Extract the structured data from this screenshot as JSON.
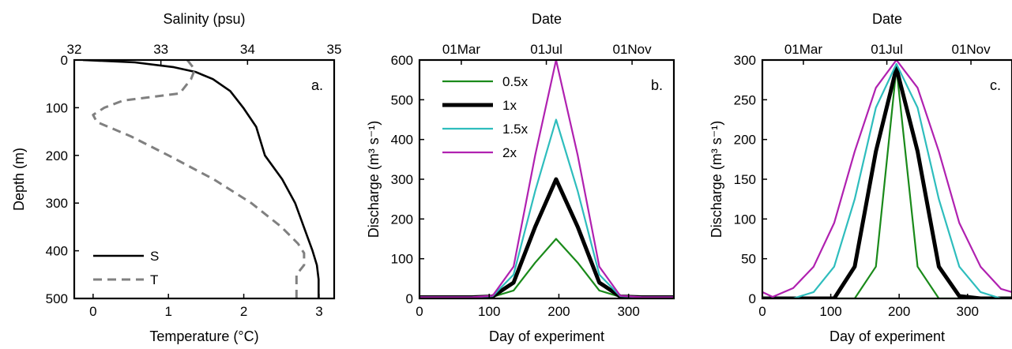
{
  "chart_data": [
    {
      "type": "line",
      "panel_label": "a.",
      "xlabel": "Temperature (°C)",
      "top_xlabel": "Salinity (psu)",
      "ylabel": "Depth (m)",
      "xlim": [
        -0.25,
        3.2
      ],
      "top_xlim": [
        32,
        35
      ],
      "ylim": [
        500,
        0
      ],
      "x_ticks": [
        "0",
        "1",
        "2",
        "3"
      ],
      "top_x_ticks": [
        "32",
        "33",
        "34",
        "35"
      ],
      "y_ticks": [
        "0",
        "100",
        "200",
        "300",
        "400",
        "500"
      ],
      "legend": {
        "position": "bottom-left",
        "entries": [
          "S",
          "T"
        ]
      },
      "series": [
        {
          "name": "S",
          "axis": "top",
          "style": "solid",
          "color": "#000000",
          "points": [
            [
              32.1,
              0
            ],
            [
              32.7,
              5
            ],
            [
              33.15,
              15
            ],
            [
              33.4,
              25
            ],
            [
              33.6,
              40
            ],
            [
              33.8,
              65
            ],
            [
              33.95,
              100
            ],
            [
              34.1,
              140
            ],
            [
              34.2,
              200
            ],
            [
              34.4,
              250
            ],
            [
              34.55,
              300
            ],
            [
              34.65,
              350
            ],
            [
              34.75,
              400
            ],
            [
              34.8,
              430
            ],
            [
              34.82,
              460
            ],
            [
              34.82,
              500
            ]
          ]
        },
        {
          "name": "T",
          "axis": "bottom",
          "style": "dashed",
          "color": "#808080",
          "points": [
            [
              1.25,
              0
            ],
            [
              1.35,
              20
            ],
            [
              1.3,
              40
            ],
            [
              1.15,
              70
            ],
            [
              0.75,
              78
            ],
            [
              0.4,
              85
            ],
            [
              0.15,
              100
            ],
            [
              0.0,
              115
            ],
            [
              0.05,
              130
            ],
            [
              0.5,
              160
            ],
            [
              1.0,
              200
            ],
            [
              1.6,
              250
            ],
            [
              2.1,
              300
            ],
            [
              2.5,
              350
            ],
            [
              2.72,
              385
            ],
            [
              2.8,
              405
            ],
            [
              2.8,
              430
            ],
            [
              2.7,
              450
            ],
            [
              2.7,
              500
            ]
          ]
        }
      ]
    },
    {
      "type": "line",
      "panel_label": "b.",
      "xlabel": "Day of experiment",
      "top_xlabel": "Date",
      "ylabel": "Discharge (m³ s⁻¹)",
      "xlim": [
        0,
        365
      ],
      "ylim": [
        0,
        600
      ],
      "x_ticks": [
        "0",
        "100",
        "200",
        "300"
      ],
      "top_x_ticks": [
        {
          "label": "01Mar",
          "x": 60
        },
        {
          "label": "01Jul",
          "x": 182
        },
        {
          "label": "01Nov",
          "x": 305
        }
      ],
      "y_ticks": [
        "0",
        "100",
        "200",
        "300",
        "400",
        "500",
        "600"
      ],
      "legend": {
        "position": "top-left",
        "entries": [
          "0.5x",
          "1x",
          "1.5x",
          "2x"
        ]
      },
      "x": [
        0,
        15,
        45,
        75,
        105,
        135,
        166,
        196,
        227,
        258,
        288,
        319,
        349,
        365
      ],
      "series": [
        {
          "name": "0.5x",
          "color": "#1a8a1a",
          "width": 2.2,
          "values": [
            3,
            3,
            3,
            3,
            4,
            20,
            90,
            150,
            90,
            20,
            4,
            3,
            3,
            3
          ]
        },
        {
          "name": "1x",
          "color": "#000000",
          "width": 5,
          "values": [
            3,
            3,
            3,
            3,
            5,
            40,
            180,
            300,
            180,
            40,
            5,
            3,
            3,
            3
          ]
        },
        {
          "name": "1.5x",
          "color": "#2ebdbd",
          "width": 2.2,
          "values": [
            3,
            3,
            3,
            3,
            6,
            60,
            270,
            450,
            270,
            60,
            6,
            3,
            3,
            3
          ]
        },
        {
          "name": "2x",
          "color": "#b021b0",
          "width": 2.2,
          "values": [
            3,
            3,
            3,
            3,
            7,
            80,
            360,
            600,
            360,
            80,
            7,
            3,
            3,
            3
          ]
        }
      ]
    },
    {
      "type": "line",
      "panel_label": "c.",
      "xlabel": "Day of experiment",
      "top_xlabel": "Date",
      "ylabel": "Discharge (m³ s⁻¹)",
      "xlim": [
        0,
        365
      ],
      "ylim": [
        0,
        300
      ],
      "x_ticks": [
        "0",
        "100",
        "200",
        "300"
      ],
      "top_x_ticks": [
        {
          "label": "01Mar",
          "x": 60
        },
        {
          "label": "01Jul",
          "x": 182
        },
        {
          "label": "01Nov",
          "x": 305
        }
      ],
      "y_ticks": [
        "0",
        "50",
        "100",
        "150",
        "200",
        "250",
        "300"
      ],
      "x": [
        0,
        15,
        45,
        75,
        105,
        135,
        166,
        196,
        227,
        258,
        288,
        319,
        349,
        365
      ],
      "series": [
        {
          "name": "0.5x",
          "color": "#1a8a1a",
          "width": 2.2,
          "values": [
            0,
            0,
            0,
            0,
            0,
            0,
            40,
            290,
            40,
            0,
            0,
            0,
            0,
            0
          ]
        },
        {
          "name": "1x",
          "color": "#000000",
          "width": 5,
          "values": [
            0,
            0,
            0,
            0,
            0,
            40,
            185,
            290,
            185,
            40,
            3,
            0,
            0,
            0
          ]
        },
        {
          "name": "1.5x",
          "color": "#2ebdbd",
          "width": 2.2,
          "values": [
            0,
            0,
            0,
            8,
            40,
            125,
            240,
            295,
            240,
            125,
            40,
            8,
            0,
            0
          ]
        },
        {
          "name": "2x",
          "color": "#b021b0",
          "width": 2.2,
          "values": [
            8,
            2,
            13,
            40,
            95,
            185,
            265,
            300,
            265,
            185,
            95,
            40,
            12,
            8
          ]
        }
      ]
    }
  ]
}
